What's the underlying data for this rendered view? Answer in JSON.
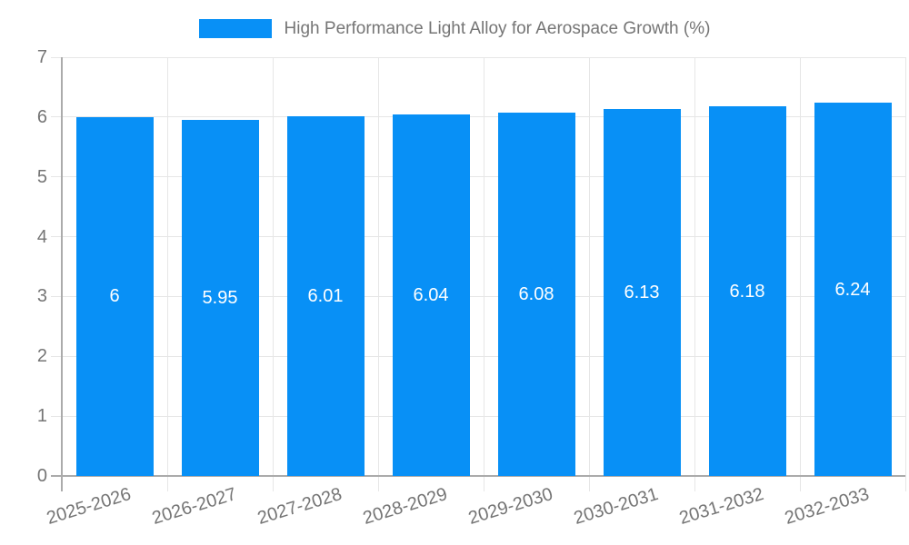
{
  "chart_data": {
    "type": "bar",
    "title": "High Performance Light Alloy for Aerospace Growth (%)",
    "categories": [
      "2025-2026",
      "2026-2027",
      "2027-2028",
      "2028-2029",
      "2029-2030",
      "2030-2031",
      "2031-2032",
      "2032-2033"
    ],
    "values": [
      6,
      5.95,
      6.01,
      6.04,
      6.08,
      6.13,
      6.18,
      6.24
    ],
    "value_labels": [
      "6",
      "5.95",
      "6.01",
      "6.04",
      "6.08",
      "6.13",
      "6.18",
      "6.24"
    ],
    "xlabel": "",
    "ylabel": "",
    "ylim": [
      0,
      7
    ],
    "yticks": [
      0,
      1,
      2,
      3,
      4,
      5,
      6,
      7
    ],
    "grid": true,
    "legend_position": "top",
    "x_label_rotation_deg": -17,
    "colors": {
      "bar": "#0890f6",
      "bar_value_text": "#ffffff",
      "legend_text": "#757575",
      "tick_text": "#757575",
      "gridline": "#e6e6e6",
      "axis_line": "#ababab",
      "background": "#ffffff"
    }
  }
}
